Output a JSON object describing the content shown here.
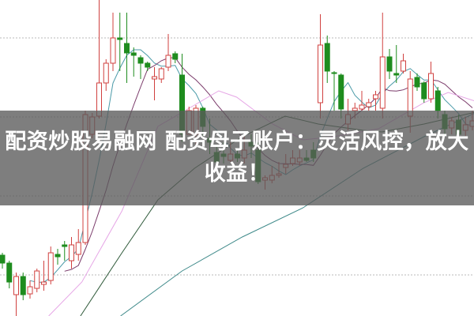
{
  "headline": "配资炒股易融网 配资母子账户：灵活风控，放大收益！",
  "colors": {
    "up": "#d0403f",
    "down": "#1e8c1e",
    "ma5": "#4a9aa8",
    "ma10": "#7a3a6a",
    "ma20": "#e6a6e6",
    "ma60": "#2f5a3a",
    "ma120": "#3f8a8a",
    "grid": "#b8b8b8",
    "band": "#5a5a5a"
  },
  "chart_data": {
    "type": "candlestick",
    "title": "",
    "grid": true,
    "ylim": [
      0,
      40
    ],
    "candles_ohlc": [
      [
        7.7,
        8.0,
        6.0,
        6.7
      ],
      [
        6.7,
        7.0,
        3.5,
        4.3
      ],
      [
        2.7,
        5.5,
        0.0,
        5.0
      ],
      [
        5.0,
        5.5,
        2.0,
        2.7
      ],
      [
        2.8,
        4.5,
        2.2,
        3.7
      ],
      [
        3.5,
        6.0,
        3.0,
        5.7
      ],
      [
        4.0,
        7.0,
        3.2,
        4.3
      ],
      [
        4.5,
        8.8,
        4.0,
        8.0
      ],
      [
        7.8,
        8.5,
        6.5,
        7.5
      ],
      [
        9.0,
        9.5,
        7.0,
        8.8
      ],
      [
        7.0,
        10.0,
        6.0,
        9.0
      ],
      [
        7.8,
        11.0,
        7.0,
        9.3
      ],
      [
        9.3,
        26.0,
        9.0,
        25.5
      ],
      [
        23.0,
        25.7,
        22.5,
        25.2
      ],
      [
        25.3,
        40.0,
        25.0,
        29.5
      ],
      [
        29.5,
        32.5,
        28.5,
        32.0
      ],
      [
        32.0,
        38.4,
        31.0,
        35.2
      ],
      [
        35.2,
        38.4,
        31.0,
        35.0
      ],
      [
        34.5,
        38.4,
        29.5,
        33.3
      ],
      [
        33.3,
        34.0,
        30.3,
        33.0
      ],
      [
        32.7,
        33.0,
        30.0,
        32.0
      ],
      [
        32.0,
        32.2,
        31.0,
        31.5
      ],
      [
        30.0,
        31.5,
        27.3,
        30.3
      ],
      [
        30.0,
        31.5,
        29.5,
        31.3
      ],
      [
        31.5,
        35.7,
        31.0,
        33.0
      ],
      [
        33.2,
        33.5,
        32.0,
        32.5
      ],
      [
        30.5,
        33.2,
        22.0,
        23.0
      ],
      [
        23.0,
        26.5,
        23.0,
        26.0
      ],
      [
        23.0,
        26.7,
        21.5,
        26.3
      ],
      [
        26.3,
        26.5,
        22.5,
        24.0
      ],
      [
        22.5,
        25.0,
        20.5,
        22.0
      ],
      [
        20.7,
        21.5,
        19.0,
        19.5
      ],
      [
        20.5,
        22.0,
        19.3,
        20.2
      ],
      [
        19.7,
        22.0,
        19.5,
        20.5
      ],
      [
        20.5,
        21.0,
        19.5,
        20.0
      ],
      [
        20.0,
        23.0,
        19.3,
        21.0
      ],
      [
        22.0,
        23.0,
        20.0,
        21.5
      ],
      [
        21.0,
        22.0,
        16.7,
        17.0
      ],
      [
        17.2,
        17.8,
        16.0,
        17.5
      ],
      [
        17.2,
        19.0,
        16.8,
        17.8
      ],
      [
        17.8,
        19.5,
        17.5,
        18.0
      ],
      [
        18.8,
        20.5,
        18.0,
        19.2
      ],
      [
        19.3,
        21.0,
        19.0,
        20.0
      ],
      [
        19.5,
        21.0,
        19.0,
        20.0
      ],
      [
        20.0,
        21.0,
        19.5,
        19.7
      ],
      [
        21.0,
        22.0,
        19.5,
        20.0
      ],
      [
        27.0,
        38.2,
        25.0,
        34.3
      ],
      [
        34.5,
        35.5,
        29.5,
        31.0
      ],
      [
        30.8,
        31.0,
        26.0,
        30.7
      ],
      [
        30.5,
        30.7,
        25.0,
        26.2
      ],
      [
        24.3,
        27.5,
        23.5,
        25.5
      ],
      [
        26.0,
        27.0,
        25.0,
        26.3
      ],
      [
        26.2,
        28.5,
        26.0,
        26.7
      ],
      [
        26.5,
        27.5,
        26.0,
        27.0
      ],
      [
        27.5,
        28.5,
        26.0,
        28.0
      ],
      [
        26.3,
        38.4,
        25.0,
        32.8
      ],
      [
        32.8,
        33.8,
        30.0,
        31.0
      ],
      [
        30.7,
        34.3,
        29.5,
        30.5
      ],
      [
        31.0,
        33.2,
        30.7,
        32.3
      ],
      [
        25.3,
        31.0,
        23.2,
        30.0
      ],
      [
        30.2,
        30.7,
        28.5,
        29.0
      ],
      [
        29.5,
        29.7,
        27.0,
        27.5
      ],
      [
        27.5,
        32.2,
        27.0,
        30.7
      ],
      [
        28.5,
        29.0,
        25.0,
        26.0
      ],
      [
        25.5,
        26.0,
        23.0,
        23.7
      ],
      [
        23.8,
        25.2,
        23.0,
        24.7
      ],
      [
        24.8,
        25.5,
        22.8,
        23.0
      ],
      [
        23.5,
        25.2,
        22.8,
        24.2
      ],
      [
        24.0,
        26.0,
        23.5,
        24.7
      ]
    ],
    "moving_averages": [
      {
        "key": "ma5",
        "period": 5
      },
      {
        "key": "ma10",
        "period": 10
      },
      {
        "key": "ma20",
        "points": [
          [
            6.7,
            0
          ],
          [
            11.5,
            4.3
          ],
          [
            17.3,
            13.3
          ],
          [
            22.5,
            24
          ],
          [
            27.8,
            26.7
          ],
          [
            31.3,
            28.5
          ],
          [
            33.9,
            27.7
          ],
          [
            39.1,
            24.3
          ],
          [
            43.5,
            22.3
          ],
          [
            47.9,
            22.7
          ],
          [
            54.4,
            23.7
          ],
          [
            61,
            27
          ],
          [
            64.5,
            28.3
          ],
          [
            68.4,
            27.2
          ]
        ]
      },
      {
        "key": "ma60",
        "points": [
          [
            11.3,
            0
          ],
          [
            17.3,
            8
          ],
          [
            22.5,
            14.7
          ],
          [
            27.8,
            18.7
          ],
          [
            34.7,
            22.7
          ],
          [
            40.9,
            25.3
          ],
          [
            45.7,
            24.3
          ],
          [
            52.2,
            23.5
          ],
          [
            54.9,
            23.3
          ],
          [
            61,
            24.3
          ],
          [
            68.4,
            25.8
          ]
        ]
      },
      {
        "key": "ma120",
        "points": [
          [
            17.1,
            0
          ],
          [
            26,
            5.7
          ],
          [
            34.7,
            10
          ],
          [
            43.5,
            13.7
          ],
          [
            52.2,
            18.7
          ],
          [
            61,
            22.7
          ],
          [
            68.4,
            25.7
          ]
        ]
      }
    ]
  }
}
